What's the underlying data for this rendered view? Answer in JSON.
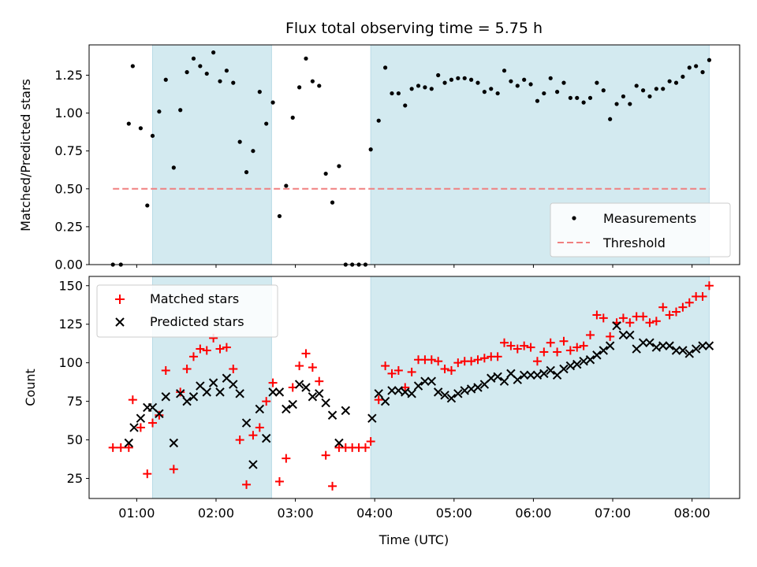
{
  "chart_data": [
    {
      "type": "scatter",
      "title": "Flux total observing time = 5.75 h",
      "xlabel": "",
      "ylabel": "Matched/Predicted stars",
      "ylim": [
        0,
        1.45
      ],
      "yticks": [
        "0.00",
        "0.25",
        "0.50",
        "0.75",
        "1.00",
        "1.25"
      ],
      "xlim": [
        "00:24",
        "08:36"
      ],
      "shaded_intervals": [
        [
          "01:12",
          "02:42"
        ],
        [
          "03:57",
          "08:13"
        ]
      ],
      "shade_color": "#d3eaf0",
      "legend_position": "lower-right",
      "legend": [
        {
          "label": "Measurements",
          "marker": "dot",
          "color": "#000000"
        },
        {
          "label": "Threshold",
          "marker": "dashed-line",
          "color": "#f08080"
        }
      ],
      "threshold": {
        "y": 0.5,
        "x_start": "00:42",
        "x_end": "08:13",
        "color": "#f08080"
      },
      "series": [
        {
          "name": "Measurements",
          "color": "#000000",
          "x": [
            "00:42",
            "00:48",
            "00:54",
            "00:57",
            "01:03",
            "01:08",
            "01:12",
            "01:17",
            "01:22",
            "01:28",
            "01:33",
            "01:38",
            "01:43",
            "01:48",
            "01:53",
            "01:58",
            "02:03",
            "02:08",
            "02:13",
            "02:18",
            "02:23",
            "02:28",
            "02:33",
            "02:38",
            "02:43",
            "02:48",
            "02:53",
            "02:58",
            "03:03",
            "03:08",
            "03:13",
            "03:18",
            "03:23",
            "03:28",
            "03:33",
            "03:38",
            "03:43",
            "03:48",
            "03:53",
            "03:57",
            "04:03",
            "04:08",
            "04:13",
            "04:18",
            "04:23",
            "04:28",
            "04:33",
            "04:38",
            "04:43",
            "04:48",
            "04:53",
            "04:58",
            "05:03",
            "05:08",
            "05:13",
            "05:18",
            "05:23",
            "05:28",
            "05:33",
            "05:38",
            "05:43",
            "05:48",
            "05:53",
            "05:58",
            "06:03",
            "06:08",
            "06:13",
            "06:18",
            "06:23",
            "06:28",
            "06:33",
            "06:38",
            "06:43",
            "06:48",
            "06:53",
            "06:58",
            "07:03",
            "07:08",
            "07:13",
            "07:18",
            "07:23",
            "07:28",
            "07:33",
            "07:38",
            "07:43",
            "07:48",
            "07:53",
            "07:58",
            "08:03",
            "08:08",
            "08:13"
          ],
          "y": [
            0.0,
            0.0,
            0.93,
            1.31,
            0.9,
            0.39,
            0.85,
            1.01,
            1.22,
            0.64,
            1.02,
            1.27,
            1.36,
            1.31,
            1.26,
            1.4,
            1.21,
            1.28,
            1.2,
            0.81,
            0.61,
            0.75,
            1.14,
            0.93,
            1.07,
            0.32,
            0.52,
            0.97,
            1.17,
            1.36,
            1.21,
            1.18,
            0.6,
            0.41,
            0.65,
            0.0,
            0.0,
            0.0,
            0.0,
            0.76,
            0.95,
            1.3,
            1.13,
            1.13,
            1.05,
            1.16,
            1.18,
            1.17,
            1.16,
            1.25,
            1.2,
            1.22,
            1.23,
            1.23,
            1.22,
            1.2,
            1.14,
            1.16,
            1.13,
            1.28,
            1.21,
            1.18,
            1.22,
            1.19,
            1.08,
            1.13,
            1.23,
            1.14,
            1.2,
            1.1,
            1.1,
            1.07,
            1.1,
            1.2,
            1.15,
            0.96,
            1.06,
            1.11,
            1.06,
            1.18,
            1.15,
            1.11,
            1.16,
            1.16,
            1.21,
            1.2,
            1.24,
            1.3,
            1.31,
            1.27,
            1.35
          ]
        }
      ]
    },
    {
      "type": "scatter",
      "title": "",
      "xlabel": "Time (UTC)",
      "ylabel": "Count",
      "ylim": [
        12,
        156
      ],
      "yticks": [
        "25",
        "50",
        "75",
        "100",
        "125",
        "150"
      ],
      "xlim": [
        "00:24",
        "08:36"
      ],
      "xticks": [
        "01:00",
        "02:00",
        "03:00",
        "04:00",
        "05:00",
        "06:00",
        "07:00",
        "08:00"
      ],
      "shaded_intervals": [
        [
          "01:12",
          "02:42"
        ],
        [
          "03:57",
          "08:13"
        ]
      ],
      "shade_color": "#d3eaf0",
      "legend_position": "upper-left",
      "legend": [
        {
          "label": "Matched stars",
          "marker": "plus",
          "color": "#ff0000"
        },
        {
          "label": "Predicted stars",
          "marker": "x",
          "color": "#000000"
        }
      ],
      "series": [
        {
          "name": "Matched stars",
          "marker": "plus",
          "color": "#ff0000",
          "x": [
            "00:42",
            "00:48",
            "00:54",
            "00:57",
            "01:03",
            "01:08",
            "01:12",
            "01:17",
            "01:22",
            "01:28",
            "01:33",
            "01:38",
            "01:43",
            "01:48",
            "01:53",
            "01:58",
            "02:03",
            "02:08",
            "02:13",
            "02:18",
            "02:23",
            "02:28",
            "02:33",
            "02:38",
            "02:43",
            "02:48",
            "02:53",
            "02:58",
            "03:03",
            "03:08",
            "03:13",
            "03:18",
            "03:23",
            "03:28",
            "03:33",
            "03:38",
            "03:43",
            "03:48",
            "03:53",
            "03:57",
            "04:03",
            "04:08",
            "04:13",
            "04:18",
            "04:23",
            "04:28",
            "04:33",
            "04:38",
            "04:43",
            "04:48",
            "04:53",
            "04:58",
            "05:03",
            "05:08",
            "05:13",
            "05:18",
            "05:23",
            "05:28",
            "05:33",
            "05:38",
            "05:43",
            "05:48",
            "05:53",
            "05:58",
            "06:03",
            "06:08",
            "06:13",
            "06:18",
            "06:23",
            "06:28",
            "06:33",
            "06:38",
            "06:43",
            "06:48",
            "06:53",
            "06:58",
            "07:03",
            "07:08",
            "07:13",
            "07:18",
            "07:23",
            "07:28",
            "07:33",
            "07:38",
            "07:43",
            "07:48",
            "07:53",
            "07:58",
            "08:03",
            "08:08",
            "08:13"
          ],
          "y": [
            45,
            45,
            45,
            76,
            58,
            28,
            61,
            66,
            95,
            31,
            81,
            96,
            104,
            109,
            108,
            116,
            109,
            110,
            96,
            50,
            21,
            53,
            58,
            75,
            87,
            23,
            38,
            84,
            98,
            106,
            97,
            88,
            40,
            20,
            45,
            45,
            45,
            45,
            45,
            49,
            76,
            98,
            93,
            95,
            84,
            94,
            102,
            102,
            102,
            101,
            96,
            95,
            100,
            101,
            101,
            102,
            103,
            104,
            104,
            113,
            111,
            109,
            111,
            110,
            101,
            107,
            113,
            107,
            114,
            108,
            110,
            111,
            118,
            131,
            129,
            117,
            126,
            129,
            126,
            130,
            130,
            126,
            127,
            136,
            131,
            133,
            136,
            139,
            143,
            143,
            150
          ]
        },
        {
          "name": "Predicted stars",
          "marker": "x",
          "color": "#000000",
          "x": [
            "00:54",
            "00:58",
            "01:03",
            "01:08",
            "01:12",
            "01:17",
            "01:22",
            "01:28",
            "01:33",
            "01:38",
            "01:43",
            "01:48",
            "01:53",
            "01:58",
            "02:03",
            "02:08",
            "02:13",
            "02:18",
            "02:23",
            "02:28",
            "02:33",
            "02:38",
            "02:43",
            "02:48",
            "02:53",
            "02:58",
            "03:03",
            "03:08",
            "03:13",
            "03:18",
            "03:23",
            "03:28",
            "03:33",
            "03:38",
            "03:58",
            "04:03",
            "04:08",
            "04:13",
            "04:18",
            "04:23",
            "04:28",
            "04:33",
            "04:38",
            "04:43",
            "04:48",
            "04:53",
            "04:58",
            "05:03",
            "05:08",
            "05:13",
            "05:18",
            "05:23",
            "05:28",
            "05:33",
            "05:38",
            "05:43",
            "05:48",
            "05:53",
            "05:58",
            "06:03",
            "06:08",
            "06:13",
            "06:18",
            "06:23",
            "06:28",
            "06:33",
            "06:38",
            "06:43",
            "06:48",
            "06:53",
            "06:58",
            "07:03",
            "07:08",
            "07:13",
            "07:18",
            "07:23",
            "07:28",
            "07:33",
            "07:38",
            "07:43",
            "07:48",
            "07:53",
            "07:58",
            "08:03",
            "08:08",
            "08:13"
          ],
          "y": [
            48,
            58,
            64,
            71,
            71,
            67,
            78,
            48,
            80,
            75,
            78,
            85,
            81,
            87,
            81,
            90,
            86,
            80,
            61,
            34,
            70,
            51,
            81,
            81,
            70,
            73,
            86,
            84,
            78,
            80,
            74,
            66,
            48,
            69,
            64,
            80,
            75,
            82,
            82,
            81,
            80,
            85,
            88,
            88,
            81,
            79,
            77,
            80,
            82,
            83,
            84,
            86,
            90,
            91,
            88,
            93,
            89,
            92,
            92,
            92,
            93,
            95,
            92,
            96,
            98,
            99,
            101,
            102,
            105,
            108,
            111,
            124,
            118,
            118,
            109,
            113,
            113,
            110,
            111,
            111,
            108,
            108,
            106,
            109,
            111,
            111
          ]
        }
      ]
    }
  ]
}
